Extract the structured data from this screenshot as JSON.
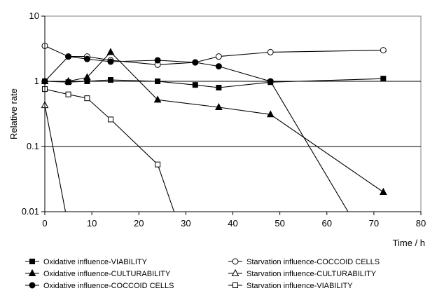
{
  "chart_data": {
    "type": "line",
    "xlabel": "Time / h",
    "ylabel": "Relative rate",
    "xlim": [
      0,
      80
    ],
    "ylim": [
      0.01,
      10
    ],
    "y_scale": "log",
    "x_ticks": [
      0,
      10,
      20,
      30,
      40,
      50,
      60,
      70,
      80
    ],
    "y_ticks": [
      {
        "value": 0.01,
        "label": "0.01"
      },
      {
        "value": 0.1,
        "label": "0.1"
      },
      {
        "value": 1,
        "label": "1"
      },
      {
        "value": 10,
        "label": "10"
      }
    ],
    "grid": "horizontal at decades",
    "legend_position": "bottom",
    "series": [
      {
        "name": "Oxidative influence-VIABILITY",
        "marker": "square",
        "filled": true,
        "points": [
          [
            0,
            1.0
          ],
          [
            5,
            0.97
          ],
          [
            9,
            1.0
          ],
          [
            14,
            1.05
          ],
          [
            24,
            1.0
          ],
          [
            32,
            0.88
          ],
          [
            37,
            0.8
          ],
          [
            48,
            0.97
          ],
          [
            72,
            1.1
          ]
        ]
      },
      {
        "name": "Starvation influence-COCCOID CELLS",
        "marker": "circle",
        "filled": false,
        "points": [
          [
            0,
            3.5
          ],
          [
            5,
            2.4
          ],
          [
            9,
            2.4
          ],
          [
            14,
            2.1
          ],
          [
            24,
            1.8
          ],
          [
            32,
            1.95
          ],
          [
            37,
            2.4
          ],
          [
            48,
            2.8
          ],
          [
            72,
            3.0
          ]
        ]
      },
      {
        "name": "Oxidative influence-CULTURABILITY",
        "marker": "triangle",
        "filled": true,
        "points": [
          [
            0,
            1.0
          ],
          [
            5,
            1.0
          ],
          [
            9,
            1.15
          ],
          [
            14,
            2.8
          ],
          [
            24,
            0.52
          ],
          [
            37,
            0.4
          ],
          [
            48,
            0.31
          ],
          [
            72,
            0.02
          ]
        ]
      },
      {
        "name": "Starvation influence-CULTURABILITY",
        "marker": "triangle",
        "filled": false,
        "points": [
          [
            0,
            0.43
          ],
          [
            4.4,
            0.01
          ]
        ]
      },
      {
        "name": "Oxidative influence-COCCOID CELLS",
        "marker": "circle",
        "filled": true,
        "points": [
          [
            0,
            1.0
          ],
          [
            5,
            2.4
          ],
          [
            9,
            2.2
          ],
          [
            14,
            2.0
          ],
          [
            24,
            2.1
          ],
          [
            32,
            1.95
          ],
          [
            37,
            1.7
          ],
          [
            48,
            1.0
          ],
          [
            64.5,
            0.01
          ]
        ]
      },
      {
        "name": "Starvation influence-VIABILITY",
        "marker": "square",
        "filled": false,
        "points": [
          [
            0,
            0.76
          ],
          [
            5,
            0.63
          ],
          [
            9,
            0.55
          ],
          [
            14,
            0.26
          ],
          [
            24,
            0.053
          ],
          [
            27.5,
            0.01
          ]
        ]
      }
    ]
  }
}
